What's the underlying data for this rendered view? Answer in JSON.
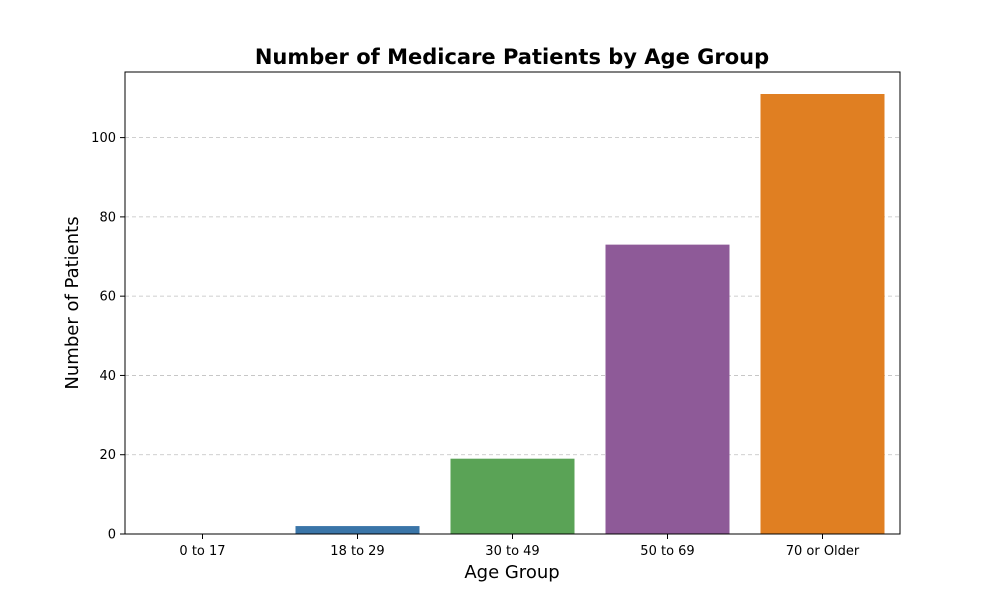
{
  "chart_data": {
    "type": "bar",
    "title": "Number of Medicare Patients by Age Group",
    "xlabel": "Age Group",
    "ylabel": "Number of Patients",
    "categories": [
      "0 to 17",
      "18 to 29",
      "30 to 49",
      "50 to 69",
      "70 or Older"
    ],
    "values": [
      0,
      2,
      19,
      73,
      111
    ],
    "colors": [
      "#3a75a8",
      "#3a75a8",
      "#5aa356",
      "#8e5a98",
      "#e07f22"
    ],
    "ylim": [
      0,
      116.55
    ],
    "yticks": [
      0,
      20,
      40,
      60,
      80,
      100
    ],
    "grid": "y-dashed",
    "legend": "none"
  }
}
